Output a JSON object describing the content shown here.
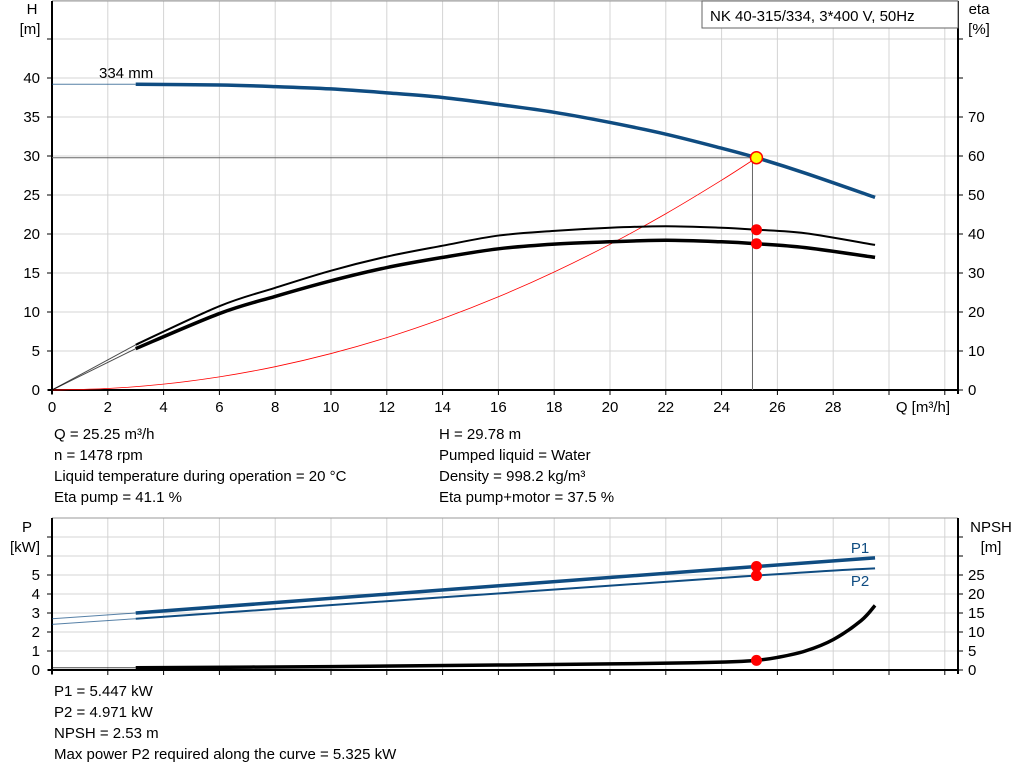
{
  "chart_data": [
    {
      "type": "line",
      "title": "NK 40-315/334, 3*400 V, 50Hz",
      "xlabel": "Q [m³/h]",
      "ylabel": "H [m]",
      "y2label": "eta [%]",
      "ylabel_lines": [
        "H",
        "[m]"
      ],
      "y2label_lines": [
        "eta",
        "[%]"
      ],
      "xlim": [
        0,
        32.5
      ],
      "ylim": [
        0,
        50
      ],
      "y2lim": [
        0,
        100
      ],
      "xticks": [
        0,
        2,
        4,
        6,
        8,
        10,
        12,
        14,
        16,
        18,
        20,
        22,
        24,
        26,
        28
      ],
      "yticks": [
        0,
        5,
        10,
        15,
        20,
        25,
        30,
        35,
        40
      ],
      "y2ticks": [
        0,
        10,
        20,
        30,
        40,
        50,
        60,
        70
      ],
      "grid": true,
      "curve_label": "334 mm",
      "series": [
        {
          "id": "H",
          "axis": "left",
          "color": "#0f4c81",
          "x": [
            0,
            3,
            6,
            8,
            10,
            12,
            14,
            16,
            18,
            20,
            22,
            24,
            25.25,
            27,
            29.5
          ],
          "y": [
            39.2,
            39.2,
            39.1,
            38.9,
            38.6,
            38.1,
            37.5,
            36.6,
            35.6,
            34.3,
            32.8,
            31.0,
            29.78,
            27.8,
            24.7
          ]
        },
        {
          "id": "eta_pump",
          "axis": "right",
          "color": "#000000",
          "x": [
            0,
            3,
            6,
            8,
            10,
            12,
            14,
            16,
            18,
            20,
            22,
            24,
            25.25,
            27,
            29.5
          ],
          "y": [
            0,
            11.6,
            21.5,
            26.2,
            30.6,
            34.2,
            37,
            39.6,
            40.8,
            41.6,
            42,
            41.6,
            41.1,
            40.2,
            37.2
          ]
        },
        {
          "id": "eta_pump_motor",
          "axis": "right",
          "color": "#000000",
          "x": [
            0,
            3,
            6,
            8,
            10,
            12,
            14,
            16,
            18,
            20,
            22,
            24,
            25.25,
            27,
            29.5
          ],
          "y": [
            0,
            10.6,
            19.6,
            24,
            28,
            31.4,
            34,
            36.2,
            37.4,
            38,
            38.4,
            38,
            37.5,
            36.5,
            34
          ]
        },
        {
          "id": "system_curve",
          "axis": "left",
          "color": "#ff0000",
          "x": [
            0,
            2,
            4,
            6,
            8,
            10,
            12,
            14,
            16,
            18,
            20,
            22,
            24,
            25.25
          ],
          "y": [
            0,
            0.19,
            0.75,
            1.68,
            2.99,
            4.67,
            6.72,
            9.15,
            11.95,
            15.13,
            18.68,
            22.6,
            26.9,
            29.78
          ]
        }
      ],
      "duty_point": {
        "Q": 25.25,
        "H": 29.78,
        "eta_pump": 41.1,
        "eta_pump_motor": 37.5
      }
    },
    {
      "type": "line",
      "ylabel": "P [kW]",
      "y2label": "NPSH [m]",
      "ylabel_lines": [
        "P",
        "[kW]"
      ],
      "y2label_lines": [
        "NPSH",
        "[m]"
      ],
      "xlim": [
        0,
        32.5
      ],
      "ylim": [
        0,
        8
      ],
      "y2lim": [
        0,
        40
      ],
      "yticks": [
        0,
        1,
        2,
        3,
        4,
        5
      ],
      "y2ticks": [
        0,
        5,
        10,
        15,
        20,
        25
      ],
      "grid": true,
      "series": [
        {
          "name": "P1",
          "axis": "left",
          "color": "#0f4c81",
          "x": [
            0,
            3,
            25.25,
            29.5
          ],
          "y": [
            2.7,
            3.0,
            5.447,
            5.9
          ]
        },
        {
          "name": "P2",
          "axis": "left",
          "color": "#0f4c81",
          "x": [
            0,
            3,
            25.25,
            29.5
          ],
          "y": [
            2.4,
            2.7,
            4.971,
            5.35
          ]
        },
        {
          "id": "NPSH",
          "axis": "right",
          "color": "#000000",
          "x": [
            0,
            3,
            10,
            16,
            20,
            23,
            24.5,
            25.25,
            26,
            27,
            28,
            29,
            29.5
          ],
          "y": [
            0.6,
            0.6,
            0.9,
            1.3,
            1.6,
            1.9,
            2.2,
            2.53,
            3.3,
            5,
            8,
            13,
            17
          ]
        }
      ],
      "duty_point": {
        "Q": 25.25,
        "P1": 5.447,
        "P2": 4.971,
        "NPSH": 2.53
      }
    }
  ],
  "info_top_left": [
    "Q = 25.25 m³/h",
    "n = 1478 rpm",
    "Liquid temperature during operation = 20 °C",
    "Eta pump = 41.1 %"
  ],
  "info_top_right": [
    "H = 29.78 m",
    "Pumped liquid = Water",
    "Density = 998.2 kg/m³",
    "Eta pump+motor = 37.5 %"
  ],
  "info_bottom": [
    "P1 = 5.447 kW",
    "P2 = 4.971 kW",
    "NPSH = 2.53 m",
    "Max power P2 required along the curve = 5.325 kW"
  ]
}
